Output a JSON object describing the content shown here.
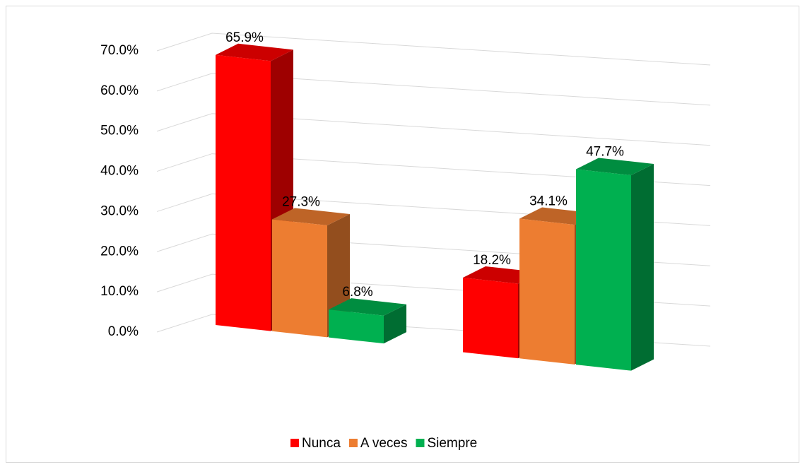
{
  "chart_data": {
    "type": "bar3d",
    "categories": [
      null,
      null
    ],
    "series": [
      {
        "name": "Nunca",
        "color": "#ff0000",
        "values": [
          65.9,
          18.2
        ],
        "value_labels": [
          "65.9%",
          "18.2%"
        ]
      },
      {
        "name": "A veces",
        "color": "#ed7d31",
        "values": [
          27.3,
          34.1
        ],
        "value_labels": [
          "27.3%",
          "34.1%"
        ]
      },
      {
        "name": "Siempre",
        "color": "#00b050",
        "values": [
          6.8,
          47.7
        ],
        "value_labels": [
          "6.8%",
          "47.7%"
        ]
      }
    ],
    "ylim": [
      0,
      70
    ],
    "yticks": [
      {
        "value": 0,
        "label": "0.0%"
      },
      {
        "value": 10,
        "label": "10.0%"
      },
      {
        "value": 20,
        "label": "20.0%"
      },
      {
        "value": 30,
        "label": "30.0%"
      },
      {
        "value": 40,
        "label": "40.0%"
      },
      {
        "value": 50,
        "label": "50.0%"
      },
      {
        "value": 60,
        "label": "60.0%"
      },
      {
        "value": 70,
        "label": "70.0%"
      }
    ],
    "grid": true,
    "legend": "bottom"
  }
}
